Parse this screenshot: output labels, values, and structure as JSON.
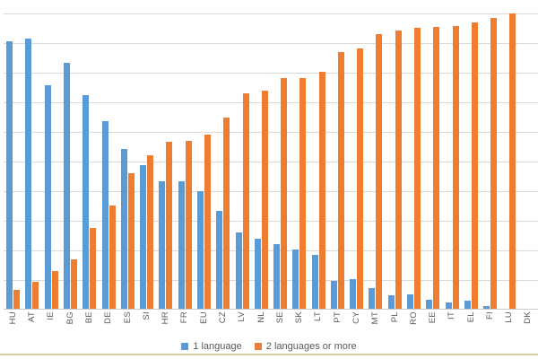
{
  "chart_data": {
    "type": "bar",
    "categories": [
      "HU",
      "AT",
      "IE",
      "BG",
      "BE",
      "DE",
      "ES",
      "SI",
      "HR",
      "FR",
      "EU",
      "CZ",
      "LV",
      "NL",
      "SE",
      "SK",
      "LT",
      "PT",
      "CY",
      "MT",
      "PL",
      "RO",
      "EE",
      "IT",
      "EL",
      "FI",
      "LU",
      "DK"
    ],
    "series": [
      {
        "name": "1 language",
        "color": "#5B9BD5",
        "values": [
          90.6,
          91.5,
          75.8,
          83.4,
          72.4,
          63.6,
          54.3,
          48.8,
          43.4,
          43.2,
          40.1,
          33.3,
          26.1,
          24,
          22.2,
          20.2,
          18.5,
          9.6,
          10.3,
          7.4,
          4.8,
          5.1,
          3.2,
          2.3,
          3,
          1.3,
          0,
          0
        ]
      },
      {
        "name": "2 languages or more",
        "color": "#ED7D31",
        "values": [
          6.7,
          9.5,
          13.1,
          16.9,
          27.5,
          35.1,
          46,
          52,
          56.8,
          57.1,
          59.1,
          64.9,
          72.9,
          74,
          78.1,
          78.1,
          80.3,
          86.9,
          88.2,
          92.9,
          94.1,
          95.2,
          95.5,
          95.7,
          97,
          98.5,
          100,
          0
        ]
      }
    ],
    "title": "",
    "xlabel": "",
    "ylabel": "",
    "ylim": [
      0,
      100
    ],
    "gridline_interval": 10,
    "grid": "horizontal",
    "y_tick_labels_visible": false,
    "legend_position": "bottom",
    "legend": [
      "1 language",
      "2 languages or more"
    ]
  },
  "colors": {
    "series_1": "#5B9BD5",
    "series_2": "#ED7D31",
    "gridline": "#D9D9D9",
    "axis_line": "#C9C9C9",
    "text": "#595959",
    "page_border": "#D5CEA7"
  }
}
